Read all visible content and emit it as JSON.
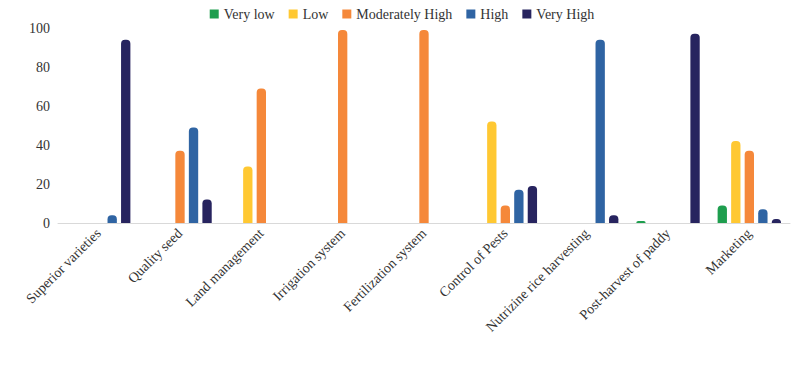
{
  "chart_data": {
    "type": "bar",
    "categories": [
      "Superior varieties",
      "Quality seed",
      "Land management",
      "Irrigation system",
      "Fertilization system",
      "Control of Pests",
      "Nutrizine rice harvesting",
      "Post-harvest of paddy",
      "Marketing"
    ],
    "series": [
      {
        "name": "Very low",
        "color": "#1e9e4e",
        "values": [
          null,
          null,
          null,
          null,
          null,
          null,
          null,
          1,
          9
        ]
      },
      {
        "name": "Low",
        "color": "#ffc832",
        "values": [
          null,
          null,
          29,
          null,
          null,
          52,
          null,
          null,
          42
        ]
      },
      {
        "name": "Moderately High",
        "color": "#f5883a",
        "values": [
          null,
          37,
          69,
          99,
          99,
          9,
          null,
          null,
          37
        ]
      },
      {
        "name": "High",
        "color": "#2f64a3",
        "values": [
          4,
          49,
          null,
          null,
          null,
          17,
          94,
          null,
          7
        ]
      },
      {
        "name": "Very High",
        "color": "#27245f",
        "values": [
          94,
          12,
          null,
          null,
          null,
          19,
          4,
          97,
          2
        ]
      }
    ],
    "ylim": [
      0,
      100
    ],
    "yticks": [
      0,
      20,
      40,
      60,
      80,
      100
    ],
    "grid": false,
    "legend": "top"
  }
}
